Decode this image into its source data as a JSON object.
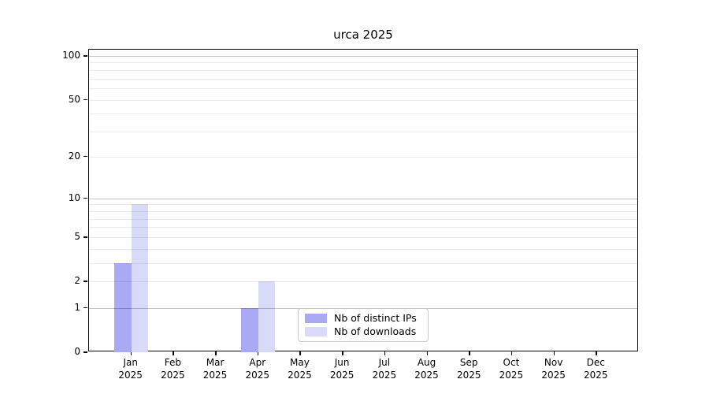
{
  "figure": {
    "background": "#ffffff"
  },
  "chart_data": {
    "type": "bar",
    "title": "urca 2025",
    "xlabel": "",
    "ylabel": "",
    "categories": [
      "Jan 2025",
      "Feb 2025",
      "Mar 2025",
      "Apr 2025",
      "May 2025",
      "Jun 2025",
      "Jul 2025",
      "Aug 2025",
      "Sep 2025",
      "Oct 2025",
      "Nov 2025",
      "Dec 2025"
    ],
    "series": [
      {
        "name": "Nb of distinct IPs",
        "color": "#a9a9f4",
        "values": [
          3,
          0,
          0,
          1,
          0,
          0,
          0,
          0,
          0,
          0,
          0,
          0
        ]
      },
      {
        "name": "Nb of downloads",
        "color": "#d9d9f8",
        "values": [
          9,
          0,
          0,
          2,
          0,
          0,
          0,
          0,
          0,
          0,
          0,
          0
        ]
      }
    ],
    "yticks": [
      0,
      1,
      2,
      5,
      10,
      20,
      50,
      100
    ],
    "ylim": [
      0,
      110
    ],
    "yscale": "log1p",
    "grid": {
      "major_values": [
        1,
        10,
        100
      ],
      "minor_values": [
        2,
        3,
        4,
        5,
        6,
        7,
        8,
        9,
        20,
        30,
        40,
        50,
        60,
        70,
        80,
        90
      ],
      "drawn_over_bars": true
    },
    "legend": {
      "position": "inside-bottom-center",
      "entries": [
        "Nb of distinct IPs",
        "Nb of downloads"
      ]
    }
  },
  "colors": {
    "axis": "#000000",
    "grid_major": "#c8c8c8",
    "grid_minor": "#ececec",
    "legend_border": "#c9c9c9",
    "bar_distinct_ips": "#a9a9f4",
    "bar_downloads": "#d9d9f8"
  }
}
